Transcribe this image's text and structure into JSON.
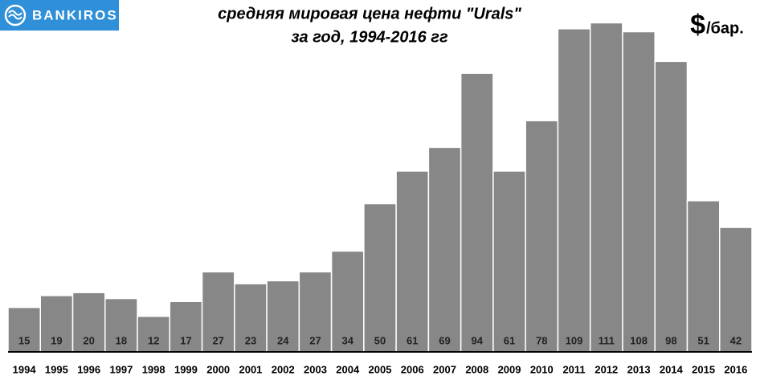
{
  "logo": "BANKIROS",
  "chart_data": {
    "type": "bar",
    "title": "средняя мировая цена нефти \"Urals\"",
    "subtitle": "за год, 1994-2016 гг",
    "unit_symbol": "$",
    "unit_text": "/бар.",
    "categories": [
      "1994",
      "1995",
      "1996",
      "1997",
      "1998",
      "1999",
      "2000",
      "2001",
      "2002",
      "2003",
      "2004",
      "2005",
      "2006",
      "2007",
      "2008",
      "2009",
      "2010",
      "2011",
      "2012",
      "2013",
      "2014",
      "2015",
      "2016"
    ],
    "values": [
      15,
      19,
      20,
      18,
      12,
      17,
      27,
      23,
      24,
      27,
      34,
      50,
      61,
      69,
      94,
      61,
      78,
      109,
      111,
      108,
      98,
      51,
      42
    ],
    "color": "#878787"
  }
}
